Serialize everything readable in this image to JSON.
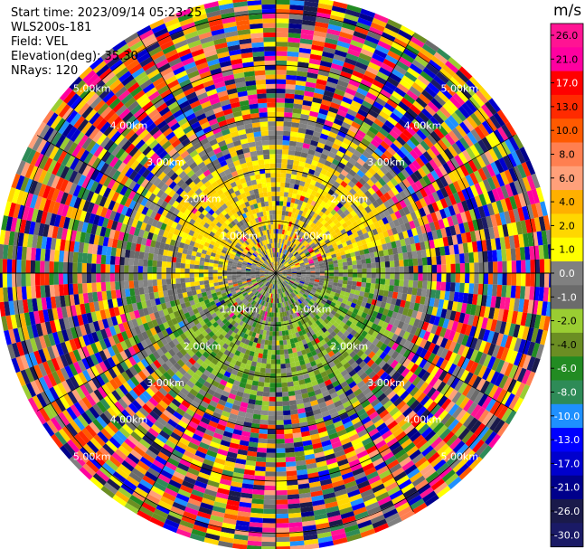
{
  "header": {
    "start_time": "Start time: 2023/09/14 05:23:25",
    "instrument": "WLS200s-181",
    "field": "Field: VEL",
    "elevation": "Elevation(deg): 35.30",
    "nrays": "NRays: 120"
  },
  "chart_data": {
    "type": "heatmap",
    "projection": "polar PPI",
    "field": "VEL",
    "nrays": 120,
    "elevation_deg": 35.3,
    "range_rings_km": [
      1.0,
      2.0,
      3.0,
      4.0,
      5.0
    ],
    "ring_label_text": [
      "1.00km",
      "2.00km",
      "3.00km",
      "4.00km",
      "5.00km"
    ],
    "colorbar": {
      "unit": "m/s",
      "ticks": [
        "26.0",
        "21.0",
        "17.0",
        "13.0",
        "10.0",
        "8.0",
        "6.0",
        "4.0",
        "2.0",
        "1.0",
        "0.0",
        "-1.0",
        "-2.0",
        "-4.0",
        "-6.0",
        "-8.0",
        "-10.0",
        "-13.0",
        "-17.0",
        "-21.0",
        "-26.0",
        "-30.0"
      ],
      "colors": [
        "#ff1493",
        "#ff00a0",
        "#ff0000",
        "#ff2a00",
        "#ff5a00",
        "#ff7f50",
        "#ffa07a",
        "#ffb000",
        "#ffd700",
        "#ffff00",
        "#808080",
        "#6b6b6b",
        "#9acd32",
        "#6b8e23",
        "#228b22",
        "#2e8b57",
        "#1e90ff",
        "#0000ff",
        "#0000cd",
        "#00008b",
        "#1a1a4a",
        "#1a1a66"
      ]
    },
    "regions": [
      {
        "range_km": [
          0,
          1.0
        ],
        "values_ms": "mixed -2 to 2"
      },
      {
        "range_km": [
          1.0,
          2.3
        ],
        "azimuth": "north",
        "values_ms": "2 to 4"
      },
      {
        "range_km": [
          1.0,
          2.3
        ],
        "azimuth": "south",
        "values_ms": "-2 to -6"
      },
      {
        "range_km": [
          2.3,
          3.0
        ],
        "values_ms": "0 to 2, sparse"
      },
      {
        "range_km": [
          3.0,
          5.7
        ],
        "values_ms": "noise, -30 to 26"
      }
    ]
  }
}
